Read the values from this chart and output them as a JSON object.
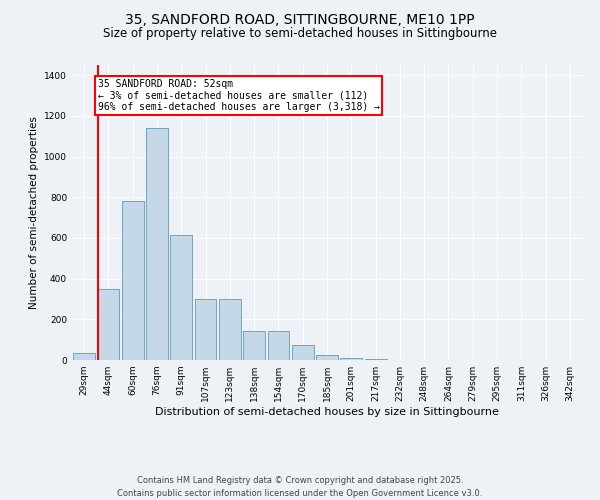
{
  "title": "35, SANDFORD ROAD, SITTINGBOURNE, ME10 1PP",
  "subtitle": "Size of property relative to semi-detached houses in Sittingbourne",
  "xlabel": "Distribution of semi-detached houses by size in Sittingbourne",
  "ylabel": "Number of semi-detached properties",
  "categories": [
    "29sqm",
    "44sqm",
    "60sqm",
    "76sqm",
    "91sqm",
    "107sqm",
    "123sqm",
    "138sqm",
    "154sqm",
    "170sqm",
    "185sqm",
    "201sqm",
    "217sqm",
    "232sqm",
    "248sqm",
    "264sqm",
    "279sqm",
    "295sqm",
    "311sqm",
    "326sqm",
    "342sqm"
  ],
  "values": [
    35,
    350,
    780,
    1140,
    615,
    300,
    300,
    145,
    145,
    75,
    25,
    10,
    5,
    2,
    1,
    0,
    0,
    0,
    0,
    0,
    0
  ],
  "bar_color": "#c5d8e8",
  "bar_edge_color": "#5a9abd",
  "vline_x_index": 1,
  "vline_color": "red",
  "annotation_text": "35 SANDFORD ROAD: 52sqm\n← 3% of semi-detached houses are smaller (112)\n96% of semi-detached houses are larger (3,318) →",
  "annotation_box_color": "white",
  "annotation_box_edge_color": "red",
  "ylim": [
    0,
    1450
  ],
  "background_color": "#eef2f7",
  "footer_text": "Contains HM Land Registry data © Crown copyright and database right 2025.\nContains public sector information licensed under the Open Government Licence v3.0.",
  "title_fontsize": 10,
  "subtitle_fontsize": 8.5,
  "annotation_fontsize": 7,
  "footer_fontsize": 6,
  "ylabel_fontsize": 7.5,
  "xlabel_fontsize": 8,
  "tick_fontsize": 6.5
}
